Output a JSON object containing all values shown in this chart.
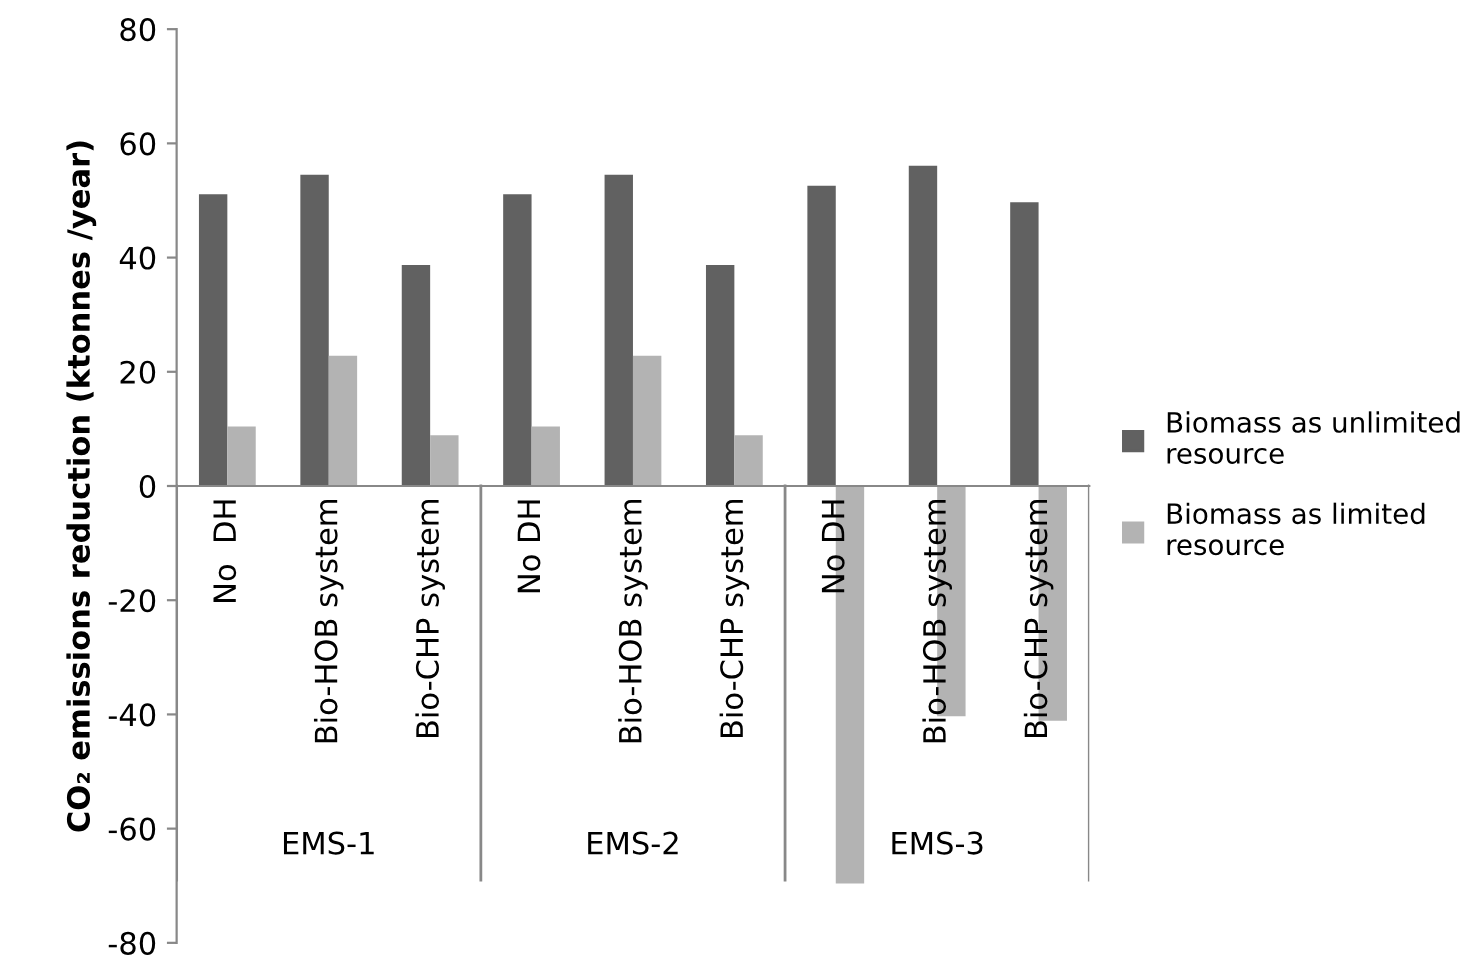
{
  "chart_data": {
    "type": "bar",
    "ylabel": "CO₂ emissions reduction (ktonnes /year)",
    "categories": [
      "No  DH",
      "Bio-HOB system",
      "Bio-CHP system",
      "No DH",
      "Bio-HOB system",
      "Bio-CHP system",
      "No DH",
      "Bio-HOB system",
      "Bio-CHP system"
    ],
    "series": [
      {
        "name": "Biomass as unlimited resource",
        "color": "#616161",
        "values": [
          51.1,
          54.5,
          38.7,
          51.1,
          54.5,
          38.7,
          52.6,
          56.1,
          49.7
        ]
      },
      {
        "name": "Biomass as limited resource",
        "color": "#b3b3b3",
        "values": [
          10.4,
          22.8,
          8.9,
          10.4,
          22.8,
          8.9,
          -69.6,
          -40.3,
          -41.1
        ]
      }
    ],
    "annotations": [
      "EMS-1",
      "EMS-2",
      "EMS-3"
    ],
    "ylim": [
      -80,
      80
    ],
    "yticks": [
      -80,
      -60,
      -40,
      -20,
      0,
      20,
      40,
      60,
      80
    ],
    "grid": false,
    "legend": "right"
  }
}
